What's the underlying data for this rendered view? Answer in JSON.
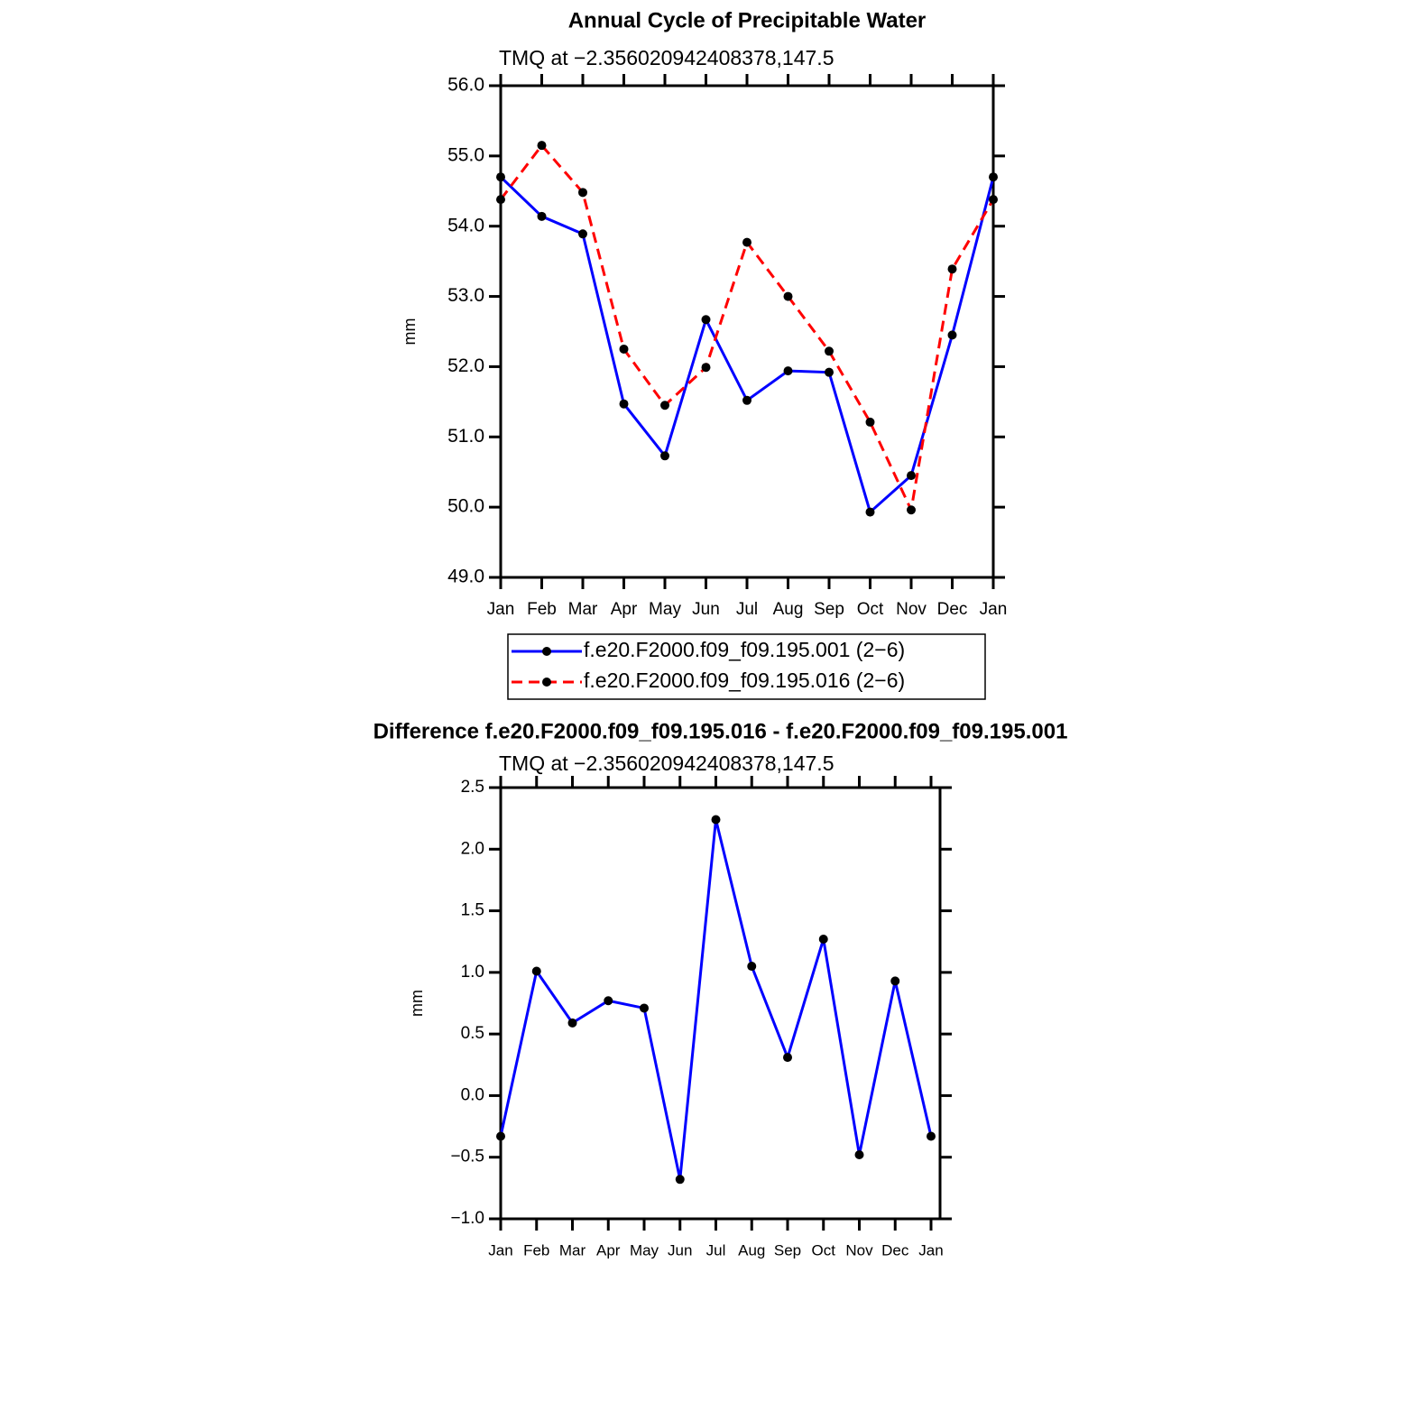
{
  "chart_data": [
    {
      "type": "line",
      "title": "Annual Cycle of Precipitable Water",
      "subtitle": "TMQ at −2.356020942408378,147.5",
      "ylabel": "mm",
      "categories": [
        "Jan",
        "Feb",
        "Mar",
        "Apr",
        "May",
        "Jun",
        "Jul",
        "Aug",
        "Sep",
        "Oct",
        "Nov",
        "Dec",
        "Jan"
      ],
      "series": [
        {
          "name": "f.e20.F2000.f09_f09.195.001 (2−6)",
          "color": "#0000ff",
          "line_style": "solid",
          "values": [
            54.7,
            54.14,
            53.89,
            51.47,
            50.73,
            52.67,
            51.52,
            51.94,
            51.92,
            49.93,
            50.45,
            52.45,
            54.7
          ]
        },
        {
          "name": "f.e20.F2000.f09_f09.195.016 (2−6)",
          "color": "#ff0000",
          "line_style": "dashed",
          "values": [
            54.38,
            55.15,
            54.48,
            52.25,
            51.45,
            51.99,
            53.77,
            53.0,
            52.22,
            51.21,
            49.96,
            53.39,
            54.38
          ]
        }
      ],
      "marker_color": "#000000",
      "ylim": [
        49,
        56
      ],
      "yticks": [
        {
          "value": 49,
          "label": "49.0"
        },
        {
          "value": 50,
          "label": "50.0"
        },
        {
          "value": 51,
          "label": "51.0"
        },
        {
          "value": 52,
          "label": "52.0"
        },
        {
          "value": 53,
          "label": "53.0"
        },
        {
          "value": 54,
          "label": "54.0"
        },
        {
          "value": 55,
          "label": "55.0"
        },
        {
          "value": 56,
          "label": "56.0"
        }
      ],
      "legend": "bottom"
    },
    {
      "type": "line",
      "title": "Difference f.e20.F2000.f09_f09.195.016 - f.e20.F2000.f09_f09.195.001",
      "subtitle": "TMQ at −2.356020942408378,147.5",
      "ylabel": "mm",
      "categories": [
        "Jan",
        "Feb",
        "Mar",
        "Apr",
        "May",
        "Jun",
        "Jul",
        "Aug",
        "Sep",
        "Oct",
        "Nov",
        "Dec",
        "Jan"
      ],
      "values": [
        -0.33,
        1.01,
        0.59,
        0.77,
        0.71,
        -0.68,
        2.24,
        1.05,
        0.31,
        1.27,
        -0.48,
        0.93,
        -0.33
      ],
      "color": "#0000ff",
      "marker_color": "#000000",
      "ylim": [
        -1,
        2.5
      ],
      "yticks": [
        {
          "value": -1,
          "label": "−1.0"
        },
        {
          "value": -0.5,
          "label": "−0.5"
        },
        {
          "value": 0,
          "label": "0.0"
        },
        {
          "value": 0.5,
          "label": "0.5"
        },
        {
          "value": 1,
          "label": "1.0"
        },
        {
          "value": 1.5,
          "label": "1.5"
        },
        {
          "value": 2,
          "label": "2.0"
        },
        {
          "value": 2.5,
          "label": "2.5"
        }
      ]
    }
  ]
}
